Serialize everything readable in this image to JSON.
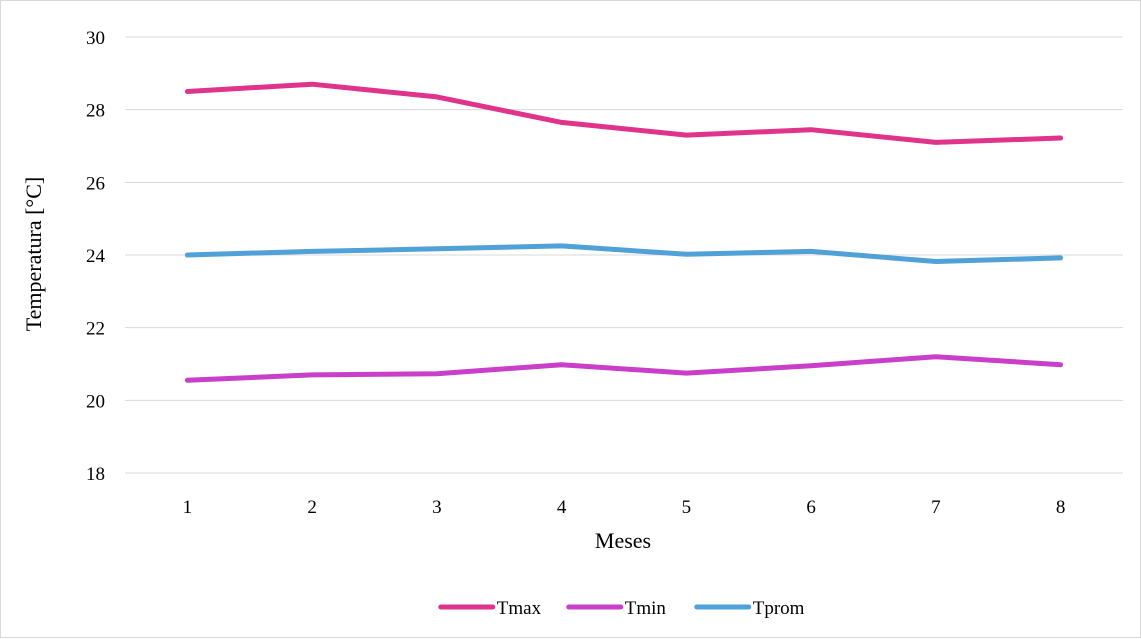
{
  "chart_data": {
    "type": "line",
    "x": [
      1,
      2,
      3,
      4,
      5,
      6,
      7,
      8
    ],
    "series": [
      {
        "name": "Tmax",
        "color": "#e0338c",
        "values": [
          28.5,
          28.7,
          28.35,
          27.65,
          27.3,
          27.45,
          27.1,
          27.22
        ]
      },
      {
        "name": "Tmin",
        "color": "#c93fc9",
        "values": [
          20.55,
          20.7,
          20.73,
          20.98,
          20.75,
          20.95,
          21.2,
          20.98
        ]
      },
      {
        "name": "Tprom",
        "color": "#4fa1d8",
        "values": [
          24.0,
          24.1,
          24.17,
          24.25,
          24.02,
          24.1,
          23.82,
          23.92
        ]
      }
    ],
    "xlabel": "Meses",
    "ylabel": "Temperatura [°C]",
    "ylim": [
      18,
      30
    ],
    "yticks": [
      18,
      20,
      22,
      24,
      26,
      28,
      30
    ],
    "grid": true,
    "legend_position": "bottom"
  }
}
